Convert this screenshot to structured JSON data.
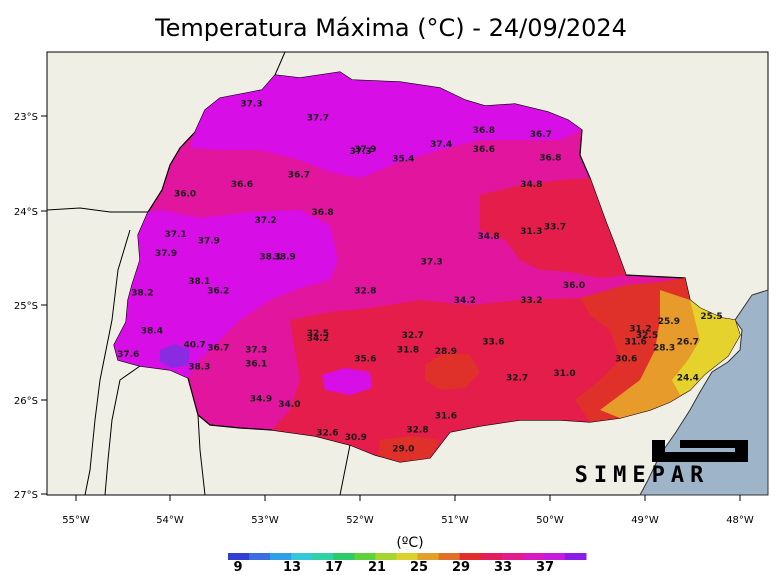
{
  "title": "Temperatura Máxima (°C) - 24/09/2024",
  "logo_text": "SIMEPAR",
  "colorbar": {
    "unit_label": "(ºC)",
    "ticks": [
      "9",
      "13",
      "17",
      "21",
      "25",
      "29",
      "33",
      "37"
    ],
    "colors": [
      "#2f3fd0",
      "#3a6fe0",
      "#2f9fe6",
      "#34c9d9",
      "#2fd1a6",
      "#2ec96a",
      "#5fd13a",
      "#a5d62f",
      "#d9d12c",
      "#e0a12a",
      "#e0702a",
      "#e02e2a",
      "#e51d5a",
      "#e31b8c",
      "#d81bc0",
      "#c51bde",
      "#8b1be6"
    ]
  },
  "axes": {
    "lon_ticks": [
      "55°W",
      "54°W",
      "53°W",
      "52°W",
      "51°W",
      "50°W",
      "49°W",
      "48°W"
    ],
    "lat_ticks": [
      "23°S",
      "24°S",
      "25°S",
      "26°S",
      "27°S"
    ]
  },
  "colors": {
    "land": "#f0efe6",
    "sea": "#9eb4c8",
    "purple": "#d80ee6",
    "magenta": "#e2159e",
    "red": "#e51d4a",
    "redorange": "#e0302a",
    "orange": "#e69b2a",
    "yellow": "#e6d22c",
    "violet": "#8a2be2"
  },
  "chart_data": {
    "type": "map",
    "title": "Temperatura Máxima (°C) - 24/09/2024",
    "lon_range": [
      -55.3,
      -47.7
    ],
    "lat_range": [
      -27.0,
      -22.4
    ],
    "stations": [
      {
        "label": "37.3",
        "lon": -53.15,
        "lat": -22.9
      },
      {
        "label": "37.7",
        "lon": -52.45,
        "lat": -23.05
      },
      {
        "label": "36.0",
        "lon": -53.85,
        "lat": -23.85
      },
      {
        "label": "36.6",
        "lon": -53.25,
        "lat": -23.75
      },
      {
        "label": "36.7",
        "lon": -52.65,
        "lat": -23.65
      },
      {
        "label": "37.3",
        "lon": -52.0,
        "lat": -23.4
      },
      {
        "label": "37.9",
        "lon": -51.95,
        "lat": -23.38
      },
      {
        "label": "35.4",
        "lon": -51.55,
        "lat": -23.48
      },
      {
        "label": "37.4",
        "lon": -51.15,
        "lat": -23.33
      },
      {
        "label": "36.8",
        "lon": -50.7,
        "lat": -23.18
      },
      {
        "label": "36.6",
        "lon": -50.7,
        "lat": -23.38
      },
      {
        "label": "36.7",
        "lon": -50.1,
        "lat": -23.22
      },
      {
        "label": "36.8",
        "lon": -50.0,
        "lat": -23.47
      },
      {
        "label": "34.8",
        "lon": -50.2,
        "lat": -23.75
      },
      {
        "label": "37.2",
        "lon": -53.0,
        "lat": -24.13
      },
      {
        "label": "36.8",
        "lon": -52.4,
        "lat": -24.05
      },
      {
        "label": "37.1",
        "lon": -53.95,
        "lat": -24.28
      },
      {
        "label": "37.9",
        "lon": -53.6,
        "lat": -24.35
      },
      {
        "label": "37.9",
        "lon": -54.05,
        "lat": -24.48
      },
      {
        "label": "38.1",
        "lon": -52.95,
        "lat": -24.52
      },
      {
        "label": "38.9",
        "lon": -52.8,
        "lat": -24.52
      },
      {
        "label": "37.3",
        "lon": -51.25,
        "lat": -24.57
      },
      {
        "label": "34.8",
        "lon": -50.65,
        "lat": -24.3
      },
      {
        "label": "31.3",
        "lon": -50.2,
        "lat": -24.25
      },
      {
        "label": "33.7",
        "lon": -49.95,
        "lat": -24.2
      },
      {
        "label": "38.1",
        "lon": -53.7,
        "lat": -24.78
      },
      {
        "label": "36.2",
        "lon": -53.5,
        "lat": -24.88
      },
      {
        "label": "38.2",
        "lon": -54.3,
        "lat": -24.9
      },
      {
        "label": "32.8",
        "lon": -51.95,
        "lat": -24.88
      },
      {
        "label": "34.2",
        "lon": -50.9,
        "lat": -24.98
      },
      {
        "label": "33.2",
        "lon": -50.2,
        "lat": -24.98
      },
      {
        "label": "36.0",
        "lon": -49.75,
        "lat": -24.82
      },
      {
        "label": "38.4",
        "lon": -54.2,
        "lat": -25.3
      },
      {
        "label": "37.6",
        "lon": -54.45,
        "lat": -25.55
      },
      {
        "label": "40.7",
        "lon": -53.75,
        "lat": -25.45
      },
      {
        "label": "36.7",
        "lon": -53.5,
        "lat": -25.48
      },
      {
        "label": "37.3",
        "lon": -53.1,
        "lat": -25.5
      },
      {
        "label": "36.1",
        "lon": -53.1,
        "lat": -25.65
      },
      {
        "label": "38.3",
        "lon": -53.7,
        "lat": -25.68
      },
      {
        "label": "32.5",
        "lon": -52.45,
        "lat": -25.33
      },
      {
        "label": "34.2",
        "lon": -52.45,
        "lat": -25.38
      },
      {
        "label": "32.7",
        "lon": -51.45,
        "lat": -25.35
      },
      {
        "label": "31.8",
        "lon": -51.5,
        "lat": -25.5
      },
      {
        "label": "28.9",
        "lon": -51.1,
        "lat": -25.52
      },
      {
        "label": "35.6",
        "lon": -51.95,
        "lat": -25.6
      },
      {
        "label": "33.6",
        "lon": -50.6,
        "lat": -25.42
      },
      {
        "label": "31.2",
        "lon": -49.05,
        "lat": -25.28
      },
      {
        "label": "32.5",
        "lon": -48.98,
        "lat": -25.35
      },
      {
        "label": "31.6",
        "lon": -49.1,
        "lat": -25.42
      },
      {
        "label": "25.9",
        "lon": -48.75,
        "lat": -25.2
      },
      {
        "label": "25.5",
        "lon": -48.3,
        "lat": -25.15
      },
      {
        "label": "26.7",
        "lon": -48.55,
        "lat": -25.42
      },
      {
        "label": "28.3",
        "lon": -48.8,
        "lat": -25.48
      },
      {
        "label": "30.6",
        "lon": -49.2,
        "lat": -25.6
      },
      {
        "label": "31.0",
        "lon": -49.85,
        "lat": -25.75
      },
      {
        "label": "32.7",
        "lon": -50.35,
        "lat": -25.8
      },
      {
        "label": "24.4",
        "lon": -48.55,
        "lat": -25.8
      },
      {
        "label": "34.9",
        "lon": -53.05,
        "lat": -26.02
      },
      {
        "label": "34.0",
        "lon": -52.75,
        "lat": -26.08
      },
      {
        "label": "32.6",
        "lon": -52.35,
        "lat": -26.38
      },
      {
        "label": "30.9",
        "lon": -52.05,
        "lat": -26.43
      },
      {
        "label": "31.6",
        "lon": -51.1,
        "lat": -26.2
      },
      {
        "label": "32.8",
        "lon": -51.4,
        "lat": -26.35
      },
      {
        "label": "29.0",
        "lon": -51.55,
        "lat": -26.55
      }
    ]
  }
}
